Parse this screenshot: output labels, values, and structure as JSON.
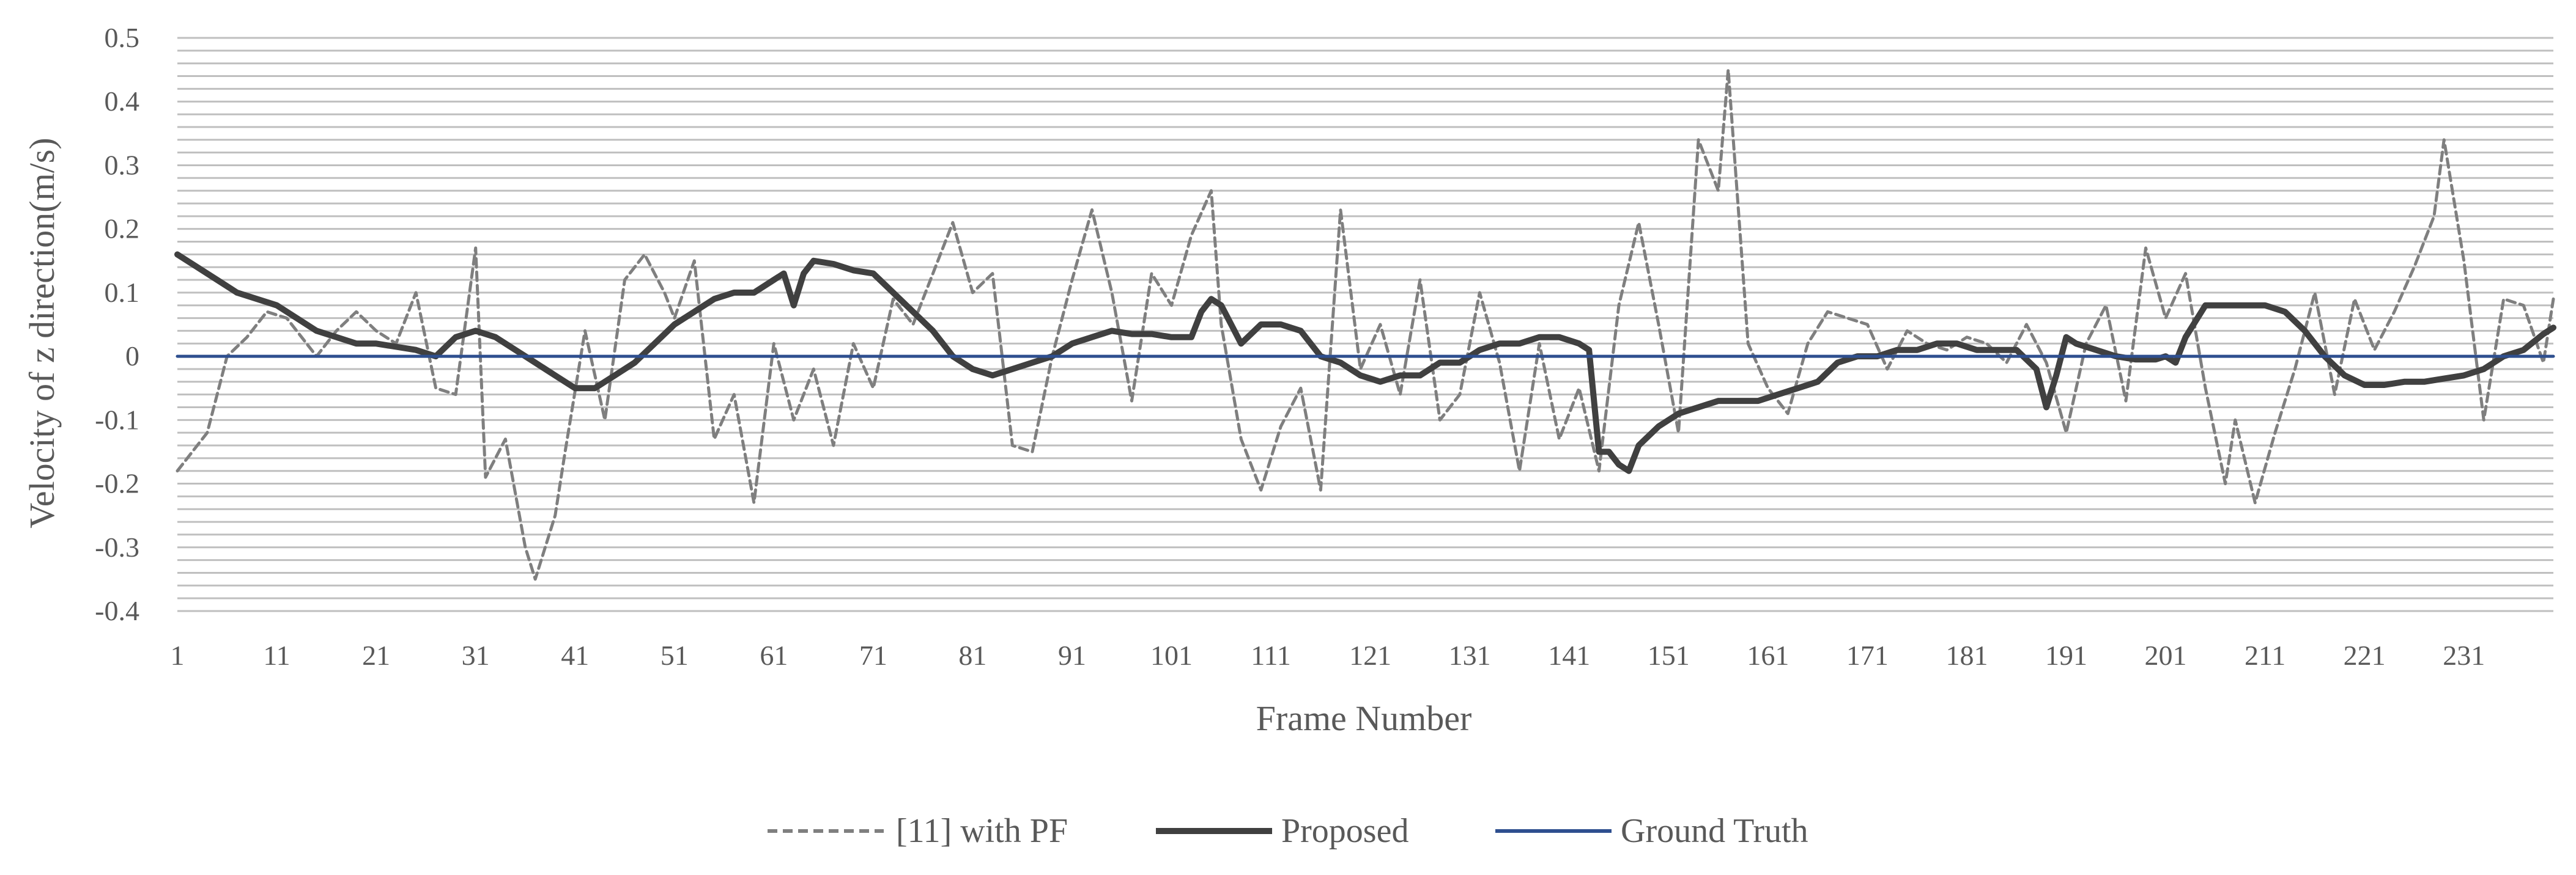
{
  "chart_data": {
    "type": "line",
    "title": "",
    "xlabel": "Frame Number",
    "ylabel": "Velocity of z direction(m/s)",
    "ylim": [
      -0.4,
      0.5
    ],
    "xlim": [
      1,
      240
    ],
    "y_ticks": [
      "0.5",
      "0.4",
      "0.3",
      "0.2",
      "0.1",
      "0",
      "-0.1",
      "-0.2",
      "-0.3",
      "-0.4"
    ],
    "y_tick_values": [
      0.5,
      0.4,
      0.3,
      0.2,
      0.1,
      0,
      -0.1,
      -0.2,
      -0.3,
      -0.4
    ],
    "x_ticks": [
      "1",
      "11",
      "21",
      "31",
      "41",
      "51",
      "61",
      "71",
      "81",
      "91",
      "101",
      "111",
      "121",
      "131",
      "141",
      "151",
      "161",
      "171",
      "181",
      "191",
      "201",
      "211",
      "221",
      "231"
    ],
    "x_tick_values": [
      1,
      11,
      21,
      31,
      41,
      51,
      61,
      71,
      81,
      91,
      101,
      111,
      121,
      131,
      141,
      151,
      161,
      171,
      181,
      191,
      201,
      211,
      221,
      231
    ],
    "grid_step": 0.02,
    "legend_position": "bottom",
    "series": [
      {
        "name": "[11] with PF",
        "color": "#7f7f7f",
        "style": "dashed",
        "x": [
          1,
          4,
          6,
          8,
          10,
          12,
          15,
          17,
          19,
          21,
          23,
          25,
          27,
          29,
          31,
          32,
          34,
          36,
          37,
          39,
          40,
          42,
          44,
          46,
          48,
          50,
          51,
          53,
          55,
          57,
          59,
          61,
          63,
          65,
          67,
          69,
          71,
          73,
          75,
          77,
          79,
          81,
          83,
          85,
          87,
          89,
          91,
          93,
          95,
          97,
          99,
          101,
          103,
          105,
          106,
          108,
          110,
          112,
          114,
          116,
          118,
          120,
          122,
          124,
          126,
          128,
          130,
          132,
          134,
          136,
          138,
          140,
          142,
          144,
          146,
          148,
          150,
          152,
          154,
          156,
          157,
          159,
          161,
          163,
          165,
          167,
          169,
          171,
          173,
          175,
          177,
          179,
          181,
          183,
          185,
          187,
          189,
          191,
          193,
          195,
          197,
          199,
          201,
          203,
          205,
          207,
          208,
          210,
          212,
          214,
          216,
          218,
          220,
          222,
          224,
          226,
          228,
          229,
          231,
          233,
          235,
          237,
          239,
          240
        ],
        "values": [
          -0.18,
          -0.12,
          0.0,
          0.03,
          0.07,
          0.06,
          0.0,
          0.04,
          0.07,
          0.04,
          0.02,
          0.1,
          -0.05,
          -0.06,
          0.17,
          -0.19,
          -0.13,
          -0.3,
          -0.35,
          -0.25,
          -0.15,
          0.04,
          -0.1,
          0.12,
          0.16,
          0.1,
          0.06,
          0.15,
          -0.13,
          -0.06,
          -0.23,
          0.02,
          -0.1,
          -0.02,
          -0.14,
          0.02,
          -0.05,
          0.09,
          0.05,
          0.13,
          0.21,
          0.1,
          0.13,
          -0.14,
          -0.15,
          0.0,
          0.12,
          0.23,
          0.1,
          -0.07,
          0.13,
          0.08,
          0.19,
          0.26,
          0.05,
          -0.13,
          -0.21,
          -0.11,
          -0.05,
          -0.21,
          0.23,
          -0.02,
          0.05,
          -0.06,
          0.12,
          -0.1,
          -0.06,
          0.1,
          -0.01,
          -0.18,
          0.02,
          -0.13,
          -0.05,
          -0.18,
          0.08,
          0.21,
          0.05,
          -0.12,
          0.34,
          0.26,
          0.45,
          0.02,
          -0.05,
          -0.09,
          0.02,
          0.07,
          0.06,
          0.05,
          -0.02,
          0.04,
          0.02,
          0.01,
          0.03,
          0.02,
          -0.01,
          0.05,
          -0.01,
          -0.12,
          0.02,
          0.08,
          -0.07,
          0.17,
          0.06,
          0.13,
          -0.05,
          -0.2,
          -0.1,
          -0.23,
          -0.12,
          -0.02,
          0.1,
          -0.06,
          0.09,
          0.01,
          0.07,
          0.14,
          0.22,
          0.34,
          0.15,
          -0.1,
          0.09,
          0.08,
          -0.01,
          0.09
        ]
      },
      {
        "name": "Proposed",
        "color": "#404040",
        "style": "solid-thick",
        "x": [
          1,
          3,
          5,
          7,
          9,
          11,
          13,
          15,
          17,
          19,
          21,
          23,
          25,
          27,
          29,
          31,
          33,
          35,
          37,
          39,
          41,
          43,
          45,
          47,
          49,
          51,
          53,
          55,
          57,
          59,
          61,
          62,
          63,
          64,
          65,
          67,
          69,
          71,
          73,
          75,
          77,
          79,
          81,
          83,
          85,
          87,
          89,
          91,
          93,
          95,
          97,
          99,
          101,
          103,
          104,
          105,
          106,
          107,
          108,
          110,
          112,
          114,
          116,
          118,
          120,
          122,
          124,
          126,
          128,
          130,
          132,
          134,
          136,
          138,
          140,
          142,
          143,
          144,
          145,
          146,
          147,
          148,
          150,
          152,
          154,
          156,
          158,
          160,
          162,
          164,
          166,
          168,
          170,
          172,
          174,
          176,
          178,
          180,
          182,
          184,
          186,
          188,
          189,
          190,
          191,
          192,
          194,
          196,
          198,
          200,
          201,
          202,
          203,
          205,
          207,
          209,
          211,
          213,
          215,
          217,
          219,
          221,
          223,
          225,
          227,
          229,
          231,
          233,
          235,
          237,
          239,
          240
        ],
        "values": [
          0.16,
          0.14,
          0.12,
          0.1,
          0.09,
          0.08,
          0.06,
          0.04,
          0.03,
          0.02,
          0.02,
          0.015,
          0.01,
          0.0,
          0.03,
          0.04,
          0.03,
          0.01,
          -0.01,
          -0.03,
          -0.05,
          -0.05,
          -0.03,
          -0.01,
          0.02,
          0.05,
          0.07,
          0.09,
          0.1,
          0.1,
          0.12,
          0.13,
          0.08,
          0.13,
          0.15,
          0.145,
          0.135,
          0.13,
          0.1,
          0.07,
          0.04,
          0.0,
          -0.02,
          -0.03,
          -0.02,
          -0.01,
          0.0,
          0.02,
          0.03,
          0.04,
          0.035,
          0.035,
          0.03,
          0.03,
          0.07,
          0.09,
          0.08,
          0.05,
          0.02,
          0.05,
          0.05,
          0.04,
          0.0,
          -0.01,
          -0.03,
          -0.04,
          -0.03,
          -0.03,
          -0.01,
          -0.01,
          0.01,
          0.02,
          0.02,
          0.03,
          0.03,
          0.02,
          0.01,
          -0.15,
          -0.15,
          -0.17,
          -0.18,
          -0.14,
          -0.11,
          -0.09,
          -0.08,
          -0.07,
          -0.07,
          -0.07,
          -0.06,
          -0.05,
          -0.04,
          -0.01,
          0.0,
          0.0,
          0.01,
          0.01,
          0.02,
          0.02,
          0.01,
          0.01,
          0.01,
          -0.02,
          -0.08,
          -0.03,
          0.03,
          0.02,
          0.01,
          0.0,
          -0.005,
          -0.005,
          0.0,
          -0.01,
          0.03,
          0.08,
          0.08,
          0.08,
          0.08,
          0.07,
          0.04,
          0.0,
          -0.03,
          -0.045,
          -0.045,
          -0.04,
          -0.04,
          -0.035,
          -0.03,
          -0.02,
          0.0,
          0.01,
          0.035,
          0.045
        ]
      },
      {
        "name": "Ground Truth",
        "color": "#2e4f8f",
        "style": "solid",
        "x": [
          1,
          240
        ],
        "values": [
          0,
          0
        ]
      }
    ]
  }
}
